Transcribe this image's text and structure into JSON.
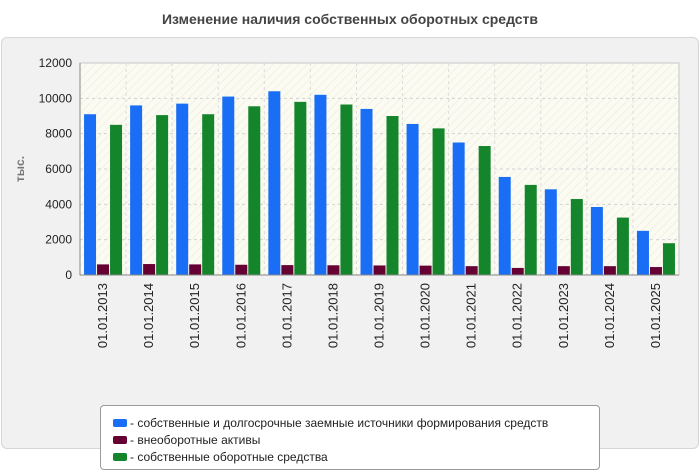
{
  "chart_data": {
    "type": "bar",
    "title": "Изменение наличия собственных оборотных средств",
    "ylabel": "тыс.",
    "xlabel": "",
    "ylim": [
      0,
      12000
    ],
    "yticks": [
      0,
      2000,
      4000,
      6000,
      8000,
      10000,
      12000
    ],
    "grid": true,
    "legend_position": "bottom",
    "categories": [
      "01.01.2013",
      "01.01.2014",
      "01.01.2015",
      "01.01.2016",
      "01.01.2017",
      "01.01.2018",
      "01.01.2019",
      "01.01.2020",
      "01.01.2021",
      "01.01.2022",
      "01.01.2023",
      "01.01.2024",
      "01.01.2025"
    ],
    "series": [
      {
        "name": "- собственные и долгосрочные заемные источники формирования средств",
        "color": "#1a6ef5",
        "values": [
          9100,
          9600,
          9700,
          10100,
          10400,
          10200,
          9400,
          8550,
          7500,
          5550,
          4850,
          3850,
          2500
        ]
      },
      {
        "name": "- внеоборотные активы",
        "color": "#660033",
        "values": [
          600,
          620,
          600,
          580,
          560,
          550,
          540,
          530,
          500,
          400,
          500,
          500,
          450
        ]
      },
      {
        "name": "- собственные оборотные средства",
        "color": "#14852b",
        "values": [
          8500,
          9050,
          9100,
          9550,
          9800,
          9650,
          9000,
          8300,
          7300,
          5100,
          4300,
          3250,
          1800
        ]
      }
    ]
  }
}
